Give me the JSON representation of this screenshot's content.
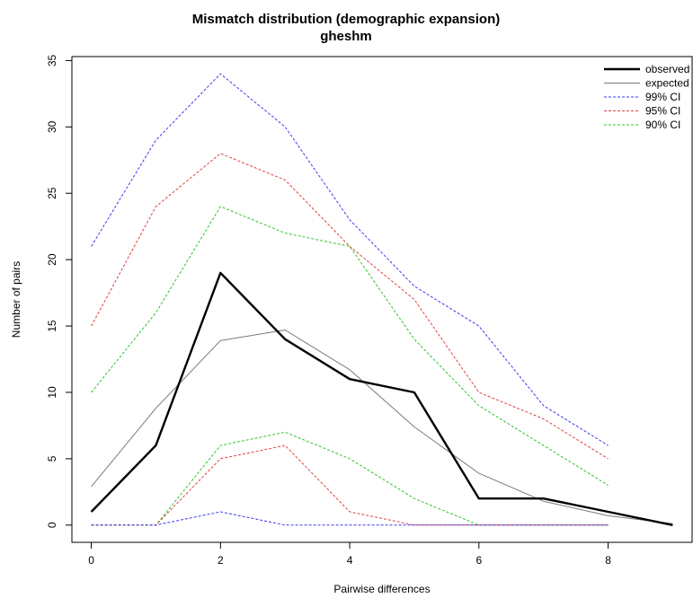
{
  "chart_data": {
    "type": "line",
    "title": "Mismatch distribution (demographic expansion)",
    "subtitle": "gheshm",
    "xlabel": "Pairwise differences",
    "ylabel": "Number of pairs",
    "xlim": [
      -0.3,
      9.3
    ],
    "ylim": [
      -1.3,
      35.3
    ],
    "xticks": [
      0,
      2,
      4,
      6,
      8
    ],
    "yticks": [
      0,
      5,
      10,
      15,
      20,
      25,
      30,
      35
    ],
    "grid": false,
    "legend_position": "top-right",
    "series": [
      {
        "name": "observed",
        "color": "#000000",
        "style": "solid-thick",
        "x": [
          0,
          1,
          2,
          3,
          4,
          5,
          6,
          7,
          8,
          9
        ],
        "values": [
          1,
          6,
          19,
          14,
          11,
          10,
          2,
          2,
          1,
          0
        ]
      },
      {
        "name": "expected",
        "color": "#7a7a7a",
        "style": "solid-thin",
        "x": [
          0,
          1,
          2,
          3,
          4,
          5,
          6,
          7,
          8,
          9
        ],
        "values": [
          2.9,
          8.8,
          13.9,
          14.7,
          11.7,
          7.4,
          3.9,
          1.8,
          0.7,
          0.1
        ]
      },
      {
        "name": "99% CI",
        "color": "#3b3bf0",
        "style": "dashed",
        "x": [
          0,
          1,
          2,
          3,
          4,
          5,
          6,
          7,
          8
        ],
        "values": [
          21,
          29,
          34,
          30,
          23,
          18,
          15,
          9,
          6
        ]
      },
      {
        "name": "95% CI",
        "color": "#e04040",
        "style": "dashed",
        "x": [
          0,
          1,
          2,
          3,
          4,
          5,
          6,
          7,
          8
        ],
        "values": [
          15,
          24,
          28,
          26,
          21,
          17,
          10,
          8,
          5
        ]
      },
      {
        "name": "90% CI",
        "color": "#2ec42e",
        "style": "dashed",
        "x": [
          0,
          1,
          2,
          3,
          4,
          5,
          6,
          7,
          8
        ],
        "values": [
          10,
          16,
          24,
          22,
          21,
          14,
          9,
          6,
          3
        ]
      },
      {
        "name": "",
        "legend": false,
        "color": "#2ec42e",
        "style": "dashed",
        "x": [
          0,
          1,
          2,
          3,
          4,
          5,
          6,
          7,
          8
        ],
        "values": [
          0,
          0,
          6,
          7,
          5,
          2,
          0,
          0,
          0
        ]
      },
      {
        "name": "",
        "legend": false,
        "color": "#e04040",
        "style": "dashed",
        "x": [
          0,
          1,
          2,
          3,
          4,
          5,
          6,
          7,
          8
        ],
        "values": [
          0,
          0,
          5,
          6,
          1,
          0,
          0,
          0,
          0
        ]
      },
      {
        "name": "",
        "legend": false,
        "color": "#3b3bf0",
        "style": "dashed",
        "x": [
          0,
          1,
          2,
          3,
          4,
          5,
          6,
          7,
          8
        ],
        "values": [
          0,
          0,
          1,
          0,
          0,
          0,
          0,
          0,
          0
        ]
      }
    ]
  }
}
